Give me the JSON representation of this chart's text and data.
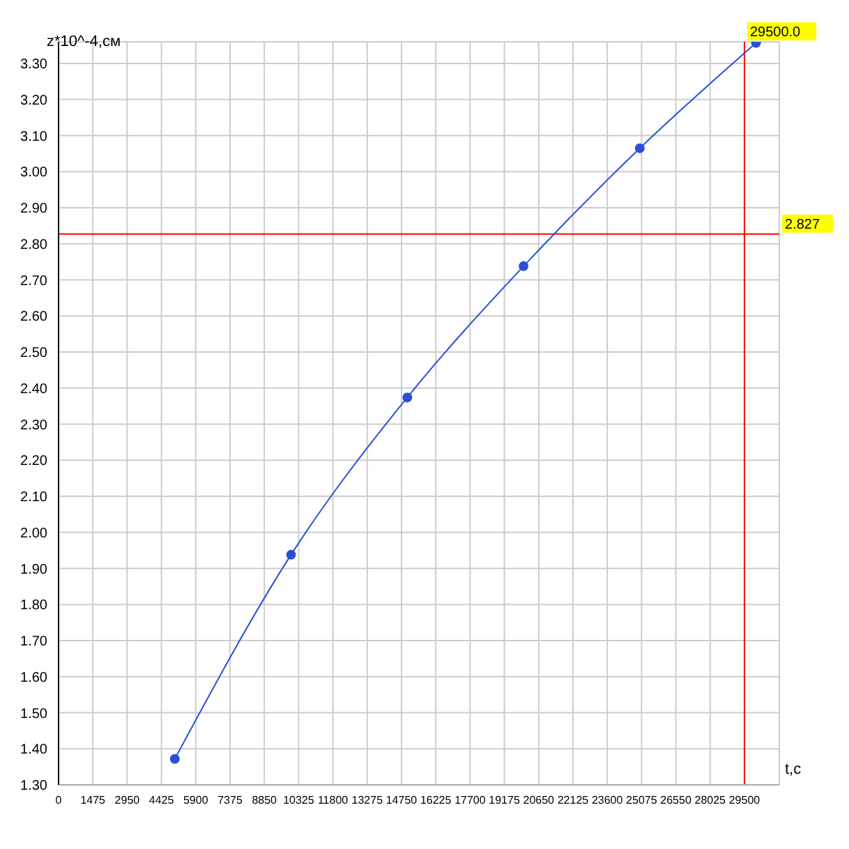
{
  "chart_data": {
    "type": "line",
    "xlabel": "t,c",
    "ylabel": "z*10^-4,см",
    "x": [
      5000,
      10000,
      15000,
      20000,
      25000,
      30000
    ],
    "series": [
      {
        "color": "#2a4fd6",
        "values": [
          1.372,
          1.938,
          2.374,
          2.738,
          3.065,
          3.357
        ]
      }
    ],
    "xlim": [
      0,
      31000
    ],
    "xticks": [
      0,
      1475,
      2950,
      4425,
      5900,
      7375,
      8850,
      10325,
      11800,
      13275,
      14750,
      16225,
      17700,
      19175,
      20650,
      22125,
      23600,
      25075,
      26550,
      28025,
      29500
    ],
    "ylim": [
      1.3,
      3.36
    ],
    "yticks": [
      {
        "value": 1.3,
        "label": "1.30"
      },
      {
        "value": 1.4,
        "label": "1.40"
      },
      {
        "value": 1.5,
        "label": "1.50"
      },
      {
        "value": 1.6,
        "label": "1.60"
      },
      {
        "value": 1.7,
        "label": "1.70"
      },
      {
        "value": 1.8,
        "label": "1.80"
      },
      {
        "value": 1.9,
        "label": "1.90"
      },
      {
        "value": 2.0,
        "label": "2.00"
      },
      {
        "value": 2.1,
        "label": "2.10"
      },
      {
        "value": 2.2,
        "label": "2.20"
      },
      {
        "value": 2.3,
        "label": "2.30"
      },
      {
        "value": 2.4,
        "label": "2.40"
      },
      {
        "value": 2.5,
        "label": "2.50"
      },
      {
        "value": 2.6,
        "label": "2.60"
      },
      {
        "value": 2.7,
        "label": "2.70"
      },
      {
        "value": 2.8,
        "label": "2.80"
      },
      {
        "value": 2.9,
        "label": "2.90"
      },
      {
        "value": 3.0,
        "label": "3.00"
      },
      {
        "value": 3.1,
        "label": "3.10"
      },
      {
        "value": 3.2,
        "label": "3.20"
      },
      {
        "value": 3.3,
        "label": "3.30"
      }
    ],
    "ref_lines": [
      {
        "axis": "x",
        "value": 29500,
        "label": "29500.0",
        "color": "#ff0000"
      },
      {
        "axis": "y",
        "value": 2.827,
        "label": "2.827",
        "color": "#ff0000"
      }
    ],
    "grid": true,
    "marker": "circle",
    "line_style": "solid",
    "legend": false
  }
}
